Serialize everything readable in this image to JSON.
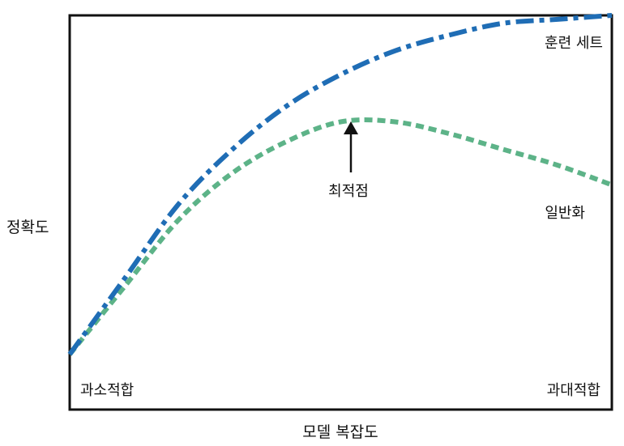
{
  "chart_data": {
    "type": "line",
    "title": "",
    "xlabel": "모델 복잡도",
    "ylabel": "정확도",
    "x": [
      0,
      0.1,
      0.2,
      0.3,
      0.4,
      0.5,
      0.6,
      0.7,
      0.8,
      0.9,
      1.0
    ],
    "xlim": [
      0,
      1
    ],
    "ylim": [
      0,
      1
    ],
    "grid": false,
    "legend": "none",
    "series": [
      {
        "name": "훈련 세트",
        "color": "#1f6db5",
        "style": "dash-dot",
        "values": [
          0.14,
          0.33,
          0.52,
          0.66,
          0.77,
          0.85,
          0.91,
          0.95,
          0.98,
          0.99,
          1.0
        ]
      },
      {
        "name": "일반화",
        "color": "#5db388",
        "style": "dashed",
        "values": [
          0.14,
          0.31,
          0.48,
          0.6,
          0.68,
          0.73,
          0.73,
          0.7,
          0.66,
          0.62,
          0.57
        ]
      }
    ],
    "annotations": {
      "optimum": {
        "text": "최적점",
        "x": 0.52
      },
      "underfit": "과소적합",
      "overfit": "과대적합"
    }
  }
}
